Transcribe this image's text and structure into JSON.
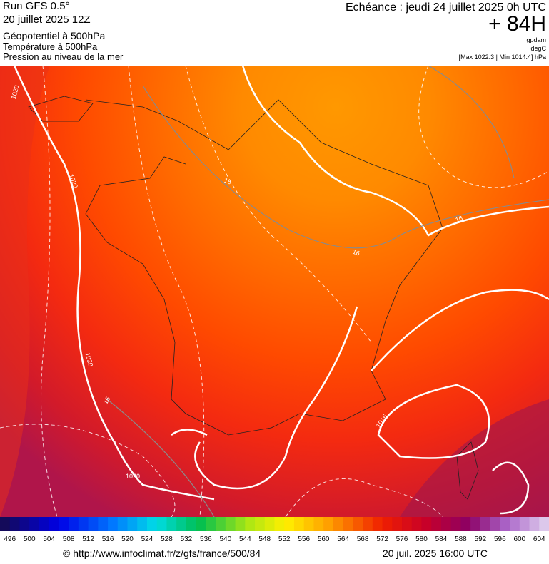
{
  "header": {
    "run": "Run GFS 0.5°",
    "date": "20 juillet 2025 12Z",
    "field1": "Géopotentiel à 500hPa",
    "field2": "Température à 500hPa",
    "field3": "Pression au niveau de la mer",
    "valid": "Echéance : jeudi 24 juillet 2025 0h UTC",
    "step": "+ 84H",
    "unit1": "gpdam",
    "unit2": "degC",
    "range": "[Max 1022.3 | Min 1014.4] hPa"
  },
  "contour_labels": [
    "1020",
    "1020",
    "1020",
    "1020",
    "16",
    "16",
    "16",
    "16",
    "1016"
  ],
  "scale": {
    "labels": [
      496,
      500,
      504,
      508,
      512,
      516,
      520,
      524,
      528,
      532,
      536,
      540,
      544,
      548,
      552,
      556,
      560,
      564,
      568,
      572,
      576,
      580,
      584,
      588,
      592,
      596,
      600,
      604
    ]
  },
  "footer": {
    "url": "© http://www.infoclimat.fr/z/gfs/france/500/84",
    "issued": "20 juil. 2025 16:00 UTC"
  }
}
